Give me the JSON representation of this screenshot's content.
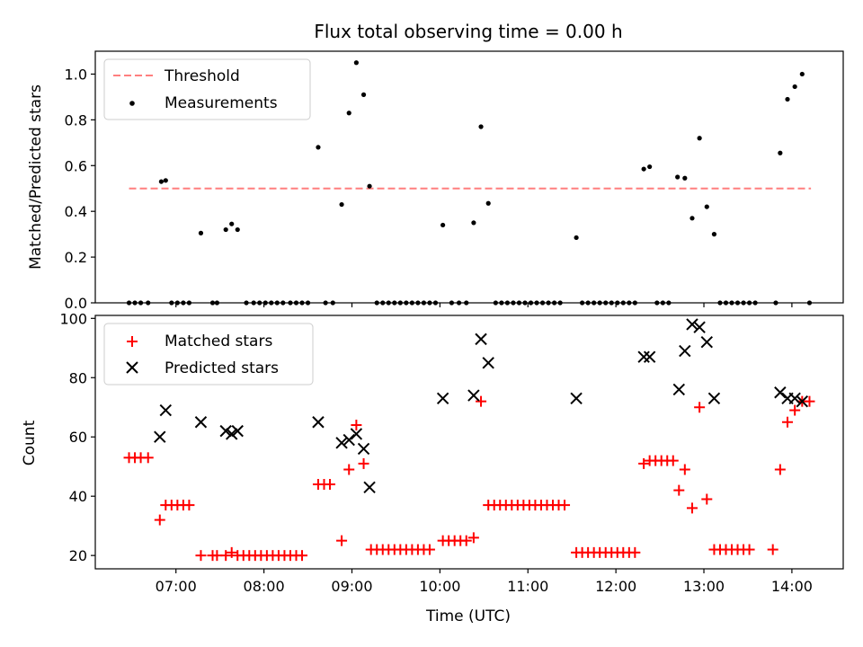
{
  "chart_data": {
    "title": "Flux total observing time = 0.00 h",
    "xlabel": "Time (UTC)",
    "x_ticks": [
      "07:00",
      "08:00",
      "09:00",
      "10:00",
      "11:00",
      "12:00",
      "13:00",
      "14:00"
    ],
    "xlim": [
      "06:05",
      "14:35"
    ],
    "panels": [
      {
        "type": "scatter",
        "ylabel": "Matched/Predicted stars",
        "ylim": [
          0,
          1.1
        ],
        "y_ticks": [
          0.0,
          0.2,
          0.4,
          0.6,
          0.8,
          1.0
        ],
        "legend": "top-left",
        "threshold": {
          "name": "Threshold",
          "y": 0.5,
          "x_range": [
            "06:28",
            "14:13"
          ],
          "color": "#ff7f7f",
          "style": "dashed"
        },
        "series": [
          {
            "name": "Measurements",
            "color": "#000000",
            "marker": "dot",
            "points": [
              [
                "06:28",
                0
              ],
              [
                "06:32",
                0
              ],
              [
                "06:36",
                0
              ],
              [
                "06:41",
                0
              ],
              [
                "06:50",
                0.53
              ],
              [
                "06:53",
                0.535
              ],
              [
                "06:57",
                0
              ],
              [
                "07:01",
                0
              ],
              [
                "07:05",
                0
              ],
              [
                "07:09",
                0
              ],
              [
                "07:17",
                0.305
              ],
              [
                "07:25",
                0
              ],
              [
                "07:28",
                0
              ],
              [
                "07:34",
                0.32
              ],
              [
                "07:38",
                0.345
              ],
              [
                "07:42",
                0.32
              ],
              [
                "07:48",
                0
              ],
              [
                "07:53",
                0
              ],
              [
                "07:57",
                0
              ],
              [
                "08:01",
                0
              ],
              [
                "08:05",
                0
              ],
              [
                "08:09",
                0
              ],
              [
                "08:13",
                0
              ],
              [
                "08:18",
                0
              ],
              [
                "08:22",
                0
              ],
              [
                "08:26",
                0
              ],
              [
                "08:30",
                0
              ],
              [
                "08:37",
                0.68
              ],
              [
                "08:42",
                0
              ],
              [
                "08:47",
                0
              ],
              [
                "08:53",
                0.43
              ],
              [
                "08:58",
                0.83
              ],
              [
                "09:03",
                1.05
              ],
              [
                "09:08",
                0.91
              ],
              [
                "09:12",
                0.51
              ],
              [
                "09:17",
                0
              ],
              [
                "09:21",
                0
              ],
              [
                "09:25",
                0
              ],
              [
                "09:29",
                0
              ],
              [
                "09:33",
                0
              ],
              [
                "09:37",
                0
              ],
              [
                "09:41",
                0
              ],
              [
                "09:45",
                0
              ],
              [
                "09:49",
                0
              ],
              [
                "09:53",
                0
              ],
              [
                "09:57",
                0
              ],
              [
                "10:02",
                0.34
              ],
              [
                "10:08",
                0
              ],
              [
                "10:13",
                0
              ],
              [
                "10:18",
                0
              ],
              [
                "10:23",
                0.35
              ],
              [
                "10:28",
                0.77
              ],
              [
                "10:33",
                0.435
              ],
              [
                "10:38",
                0
              ],
              [
                "10:42",
                0
              ],
              [
                "10:46",
                0
              ],
              [
                "10:50",
                0
              ],
              [
                "10:54",
                0
              ],
              [
                "10:58",
                0
              ],
              [
                "11:02",
                0
              ],
              [
                "11:06",
                0
              ],
              [
                "11:10",
                0
              ],
              [
                "11:14",
                0
              ],
              [
                "11:18",
                0
              ],
              [
                "11:22",
                0
              ],
              [
                "11:33",
                0.285
              ],
              [
                "11:37",
                0
              ],
              [
                "11:41",
                0
              ],
              [
                "11:45",
                0
              ],
              [
                "11:49",
                0
              ],
              [
                "11:53",
                0
              ],
              [
                "11:57",
                0
              ],
              [
                "12:01",
                0
              ],
              [
                "12:05",
                0
              ],
              [
                "12:09",
                0
              ],
              [
                "12:13",
                0
              ],
              [
                "12:19",
                0.585
              ],
              [
                "12:23",
                0.595
              ],
              [
                "12:28",
                0
              ],
              [
                "12:32",
                0
              ],
              [
                "12:36",
                0
              ],
              [
                "12:42",
                0.55
              ],
              [
                "12:47",
                0.545
              ],
              [
                "12:52",
                0.37
              ],
              [
                "12:57",
                0.72
              ],
              [
                "13:02",
                0.42
              ],
              [
                "13:07",
                0.3
              ],
              [
                "13:11",
                0
              ],
              [
                "13:15",
                0
              ],
              [
                "13:19",
                0
              ],
              [
                "13:23",
                0
              ],
              [
                "13:27",
                0
              ],
              [
                "13:31",
                0
              ],
              [
                "13:35",
                0
              ],
              [
                "13:49",
                0
              ],
              [
                "13:52",
                0.655
              ],
              [
                "13:57",
                0.89
              ],
              [
                "14:02",
                0.945
              ],
              [
                "14:07",
                1.0
              ],
              [
                "14:12",
                0
              ]
            ]
          }
        ]
      },
      {
        "type": "scatter",
        "ylabel": "Count",
        "ylim": [
          15.5,
          101
        ],
        "y_ticks": [
          20,
          40,
          60,
          80,
          100
        ],
        "legend": "top-left",
        "series": [
          {
            "name": "Matched stars",
            "color": "#ff0000",
            "marker": "plus",
            "points": [
              [
                "06:28",
                53
              ],
              [
                "06:32",
                53
              ],
              [
                "06:36",
                53
              ],
              [
                "06:41",
                53
              ],
              [
                "06:49",
                32
              ],
              [
                "06:53",
                37
              ],
              [
                "06:57",
                37
              ],
              [
                "07:01",
                37
              ],
              [
                "07:05",
                37
              ],
              [
                "07:09",
                37
              ],
              [
                "07:17",
                20
              ],
              [
                "07:25",
                20
              ],
              [
                "07:28",
                20
              ],
              [
                "07:34",
                20
              ],
              [
                "07:38",
                21
              ],
              [
                "07:42",
                20
              ],
              [
                "07:46",
                20
              ],
              [
                "07:50",
                20
              ],
              [
                "07:54",
                20
              ],
              [
                "07:58",
                20
              ],
              [
                "08:02",
                20
              ],
              [
                "08:06",
                20
              ],
              [
                "08:10",
                20
              ],
              [
                "08:14",
                20
              ],
              [
                "08:18",
                20
              ],
              [
                "08:22",
                20
              ],
              [
                "08:26",
                20
              ],
              [
                "08:37",
                44
              ],
              [
                "08:41",
                44
              ],
              [
                "08:45",
                44
              ],
              [
                "08:53",
                25
              ],
              [
                "08:58",
                49
              ],
              [
                "09:03",
                64
              ],
              [
                "09:08",
                51
              ],
              [
                "09:13",
                22
              ],
              [
                "09:17",
                22
              ],
              [
                "09:21",
                22
              ],
              [
                "09:25",
                22
              ],
              [
                "09:29",
                22
              ],
              [
                "09:33",
                22
              ],
              [
                "09:37",
                22
              ],
              [
                "09:41",
                22
              ],
              [
                "09:45",
                22
              ],
              [
                "09:49",
                22
              ],
              [
                "09:53",
                22
              ],
              [
                "10:02",
                25
              ],
              [
                "10:06",
                25
              ],
              [
                "10:10",
                25
              ],
              [
                "10:14",
                25
              ],
              [
                "10:18",
                25
              ],
              [
                "10:23",
                26
              ],
              [
                "10:28",
                72
              ],
              [
                "10:33",
                37
              ],
              [
                "10:37",
                37
              ],
              [
                "10:41",
                37
              ],
              [
                "10:45",
                37
              ],
              [
                "10:49",
                37
              ],
              [
                "10:53",
                37
              ],
              [
                "10:57",
                37
              ],
              [
                "11:01",
                37
              ],
              [
                "11:05",
                37
              ],
              [
                "11:09",
                37
              ],
              [
                "11:13",
                37
              ],
              [
                "11:17",
                37
              ],
              [
                "11:21",
                37
              ],
              [
                "11:25",
                37
              ],
              [
                "11:33",
                21
              ],
              [
                "11:37",
                21
              ],
              [
                "11:41",
                21
              ],
              [
                "11:45",
                21
              ],
              [
                "11:49",
                21
              ],
              [
                "11:53",
                21
              ],
              [
                "11:57",
                21
              ],
              [
                "12:01",
                21
              ],
              [
                "12:05",
                21
              ],
              [
                "12:09",
                21
              ],
              [
                "12:13",
                21
              ],
              [
                "12:19",
                51
              ],
              [
                "12:23",
                52
              ],
              [
                "12:27",
                52
              ],
              [
                "12:31",
                52
              ],
              [
                "12:35",
                52
              ],
              [
                "12:39",
                52
              ],
              [
                "12:43",
                42
              ],
              [
                "12:47",
                49
              ],
              [
                "12:52",
                36
              ],
              [
                "12:57",
                70
              ],
              [
                "13:02",
                39
              ],
              [
                "13:07",
                22
              ],
              [
                "13:11",
                22
              ],
              [
                "13:15",
                22
              ],
              [
                "13:19",
                22
              ],
              [
                "13:23",
                22
              ],
              [
                "13:27",
                22
              ],
              [
                "13:31",
                22
              ],
              [
                "13:47",
                22
              ],
              [
                "13:52",
                49
              ],
              [
                "13:57",
                65
              ],
              [
                "14:02",
                69
              ],
              [
                "14:07",
                72
              ],
              [
                "14:12",
                72
              ]
            ]
          },
          {
            "name": "Predicted stars",
            "color": "#000000",
            "marker": "x",
            "points": [
              [
                "06:49",
                60
              ],
              [
                "06:53",
                69
              ],
              [
                "07:17",
                65
              ],
              [
                "07:34",
                62
              ],
              [
                "07:38",
                61
              ],
              [
                "07:42",
                62
              ],
              [
                "08:37",
                65
              ],
              [
                "08:53",
                58
              ],
              [
                "08:58",
                59
              ],
              [
                "09:03",
                61
              ],
              [
                "09:08",
                56
              ],
              [
                "09:12",
                43
              ],
              [
                "10:02",
                73
              ],
              [
                "10:23",
                74
              ],
              [
                "10:28",
                93
              ],
              [
                "10:33",
                85
              ],
              [
                "11:33",
                73
              ],
              [
                "12:19",
                87
              ],
              [
                "12:23",
                87
              ],
              [
                "12:43",
                76
              ],
              [
                "12:47",
                89
              ],
              [
                "12:52",
                98
              ],
              [
                "12:57",
                97
              ],
              [
                "13:02",
                92
              ],
              [
                "13:07",
                73
              ],
              [
                "13:52",
                75
              ],
              [
                "13:57",
                73
              ],
              [
                "14:02",
                73
              ],
              [
                "14:07",
                72
              ]
            ]
          }
        ]
      }
    ]
  }
}
